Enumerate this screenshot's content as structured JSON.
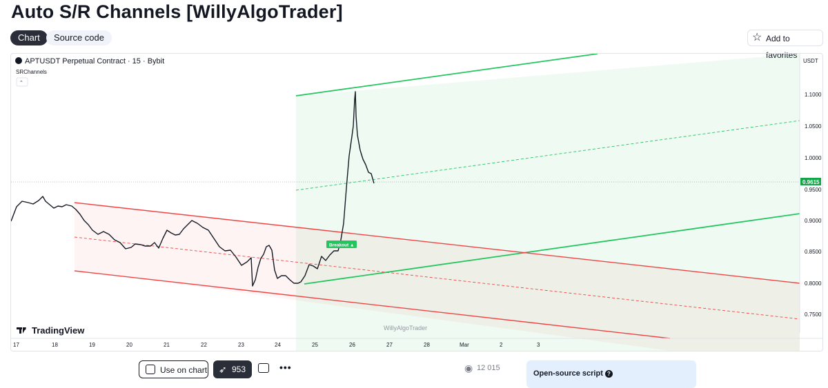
{
  "title": "Auto S/R Channels [WillyAlgoTrader]",
  "tabs": {
    "chart": "Chart",
    "source": "Source code"
  },
  "favorites_label": "Add to favorites",
  "chart": {
    "symbol_line": "APTUSDT Perpetual Contract · 15 · Bybit",
    "indicator": "SRChannels",
    "currency": "USDT",
    "watermark": "WillyAlgoTrader",
    "brand": "TradingView",
    "price_badge": "0.9615",
    "breakout_label": "Breakout ▲",
    "colors": {
      "bull": "#22c55e",
      "bear": "#ef4444",
      "badge": "#16a34a"
    },
    "y_ticks": [
      "1.1000",
      "1.0500",
      "1.0000",
      "0.9500",
      "0.9000",
      "0.8500",
      "0.8000",
      "0.7500"
    ],
    "x_ticks": [
      "17",
      "18",
      "19",
      "20",
      "21",
      "22",
      "23",
      "24",
      "25",
      "26",
      "27",
      "28",
      "Mar",
      "2",
      "3"
    ]
  },
  "chart_data": {
    "type": "candlestick",
    "symbol": "APTUSDT",
    "timeframe": "15",
    "exchange": "Bybit",
    "ylim": [
      0.72,
      1.16
    ],
    "last_price": 0.9615,
    "price_path": [
      [
        "17",
        0.9
      ],
      [
        "17.4",
        0.935
      ],
      [
        "18",
        0.93
      ],
      [
        "18.7",
        0.91
      ],
      [
        "19",
        0.875
      ],
      [
        "19.6",
        0.87
      ],
      [
        "20",
        0.845
      ],
      [
        "20.7",
        0.86
      ],
      [
        "21",
        0.875
      ],
      [
        "21.8",
        0.9
      ],
      [
        "22",
        0.89
      ],
      [
        "22.5",
        0.86
      ],
      [
        "23",
        0.82
      ],
      [
        "23.3",
        0.79
      ],
      [
        "23.8",
        0.86
      ],
      [
        "24",
        0.815
      ],
      [
        "24.5",
        0.8
      ],
      [
        "25",
        0.83
      ],
      [
        "25.5",
        0.87
      ],
      [
        "25.8",
        1.0
      ],
      [
        "26",
        1.1
      ],
      [
        "26.2",
        1.0
      ],
      [
        "26.5",
        0.96
      ]
    ],
    "channels": [
      {
        "name": "",
        "kind": "resistance",
        "start": [
          "24.5",
          1.097
        ],
        "end": [
          "3.6",
          1.163
        ],
        "type": "bull"
      },
      {
        "name": "",
        "kind": "support",
        "start": [
          "24.7",
          0.797
        ],
        "end": [
          "3.6",
          0.906
        ],
        "type": "bull"
      },
      {
        "name": "",
        "kind": "upper",
        "start": [
          "18.5",
          0.928
        ],
        "end": [
          "3.6",
          0.796
        ],
        "type": "bear"
      },
      {
        "name": "",
        "kind": "lower",
        "start": [
          "18.5",
          0.82
        ],
        "end": [
          "3.6",
          0.686
        ],
        "type": "bear"
      }
    ]
  },
  "toolbar": {
    "use_label": "Use on chart",
    "boost_count": "953",
    "views": "12 015",
    "open_source_label": "Open-source script"
  }
}
